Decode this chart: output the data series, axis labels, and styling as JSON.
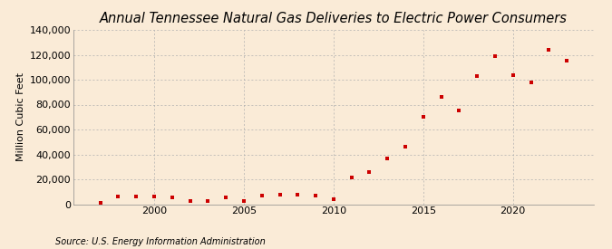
{
  "title": "Annual Tennessee Natural Gas Deliveries to Electric Power Consumers",
  "ylabel": "Million Cubic Feet",
  "source": "Source: U.S. Energy Information Administration",
  "background_color": "#faebd7",
  "marker_color": "#cc0000",
  "years": [
    1997,
    1998,
    1999,
    2000,
    2001,
    2002,
    2003,
    2004,
    2005,
    2006,
    2007,
    2008,
    2009,
    2010,
    2011,
    2012,
    2013,
    2014,
    2015,
    2016,
    2017,
    2018,
    2019,
    2020,
    2021,
    2022,
    2023
  ],
  "values": [
    1200,
    6500,
    6000,
    6000,
    5800,
    2500,
    2500,
    5500,
    2800,
    6800,
    8000,
    7500,
    6800,
    4200,
    21500,
    26000,
    37000,
    46000,
    70000,
    86000,
    75500,
    103000,
    119000,
    104000,
    97500,
    124000,
    115000
  ],
  "xlim": [
    1995.5,
    2024.5
  ],
  "ylim": [
    0,
    140000
  ],
  "yticks": [
    0,
    20000,
    40000,
    60000,
    80000,
    100000,
    120000,
    140000
  ],
  "xticks": [
    2000,
    2005,
    2010,
    2015,
    2020
  ],
  "grid_color": "#b0b0b0",
  "title_fontsize": 10.5,
  "axis_fontsize": 8,
  "source_fontsize": 7
}
